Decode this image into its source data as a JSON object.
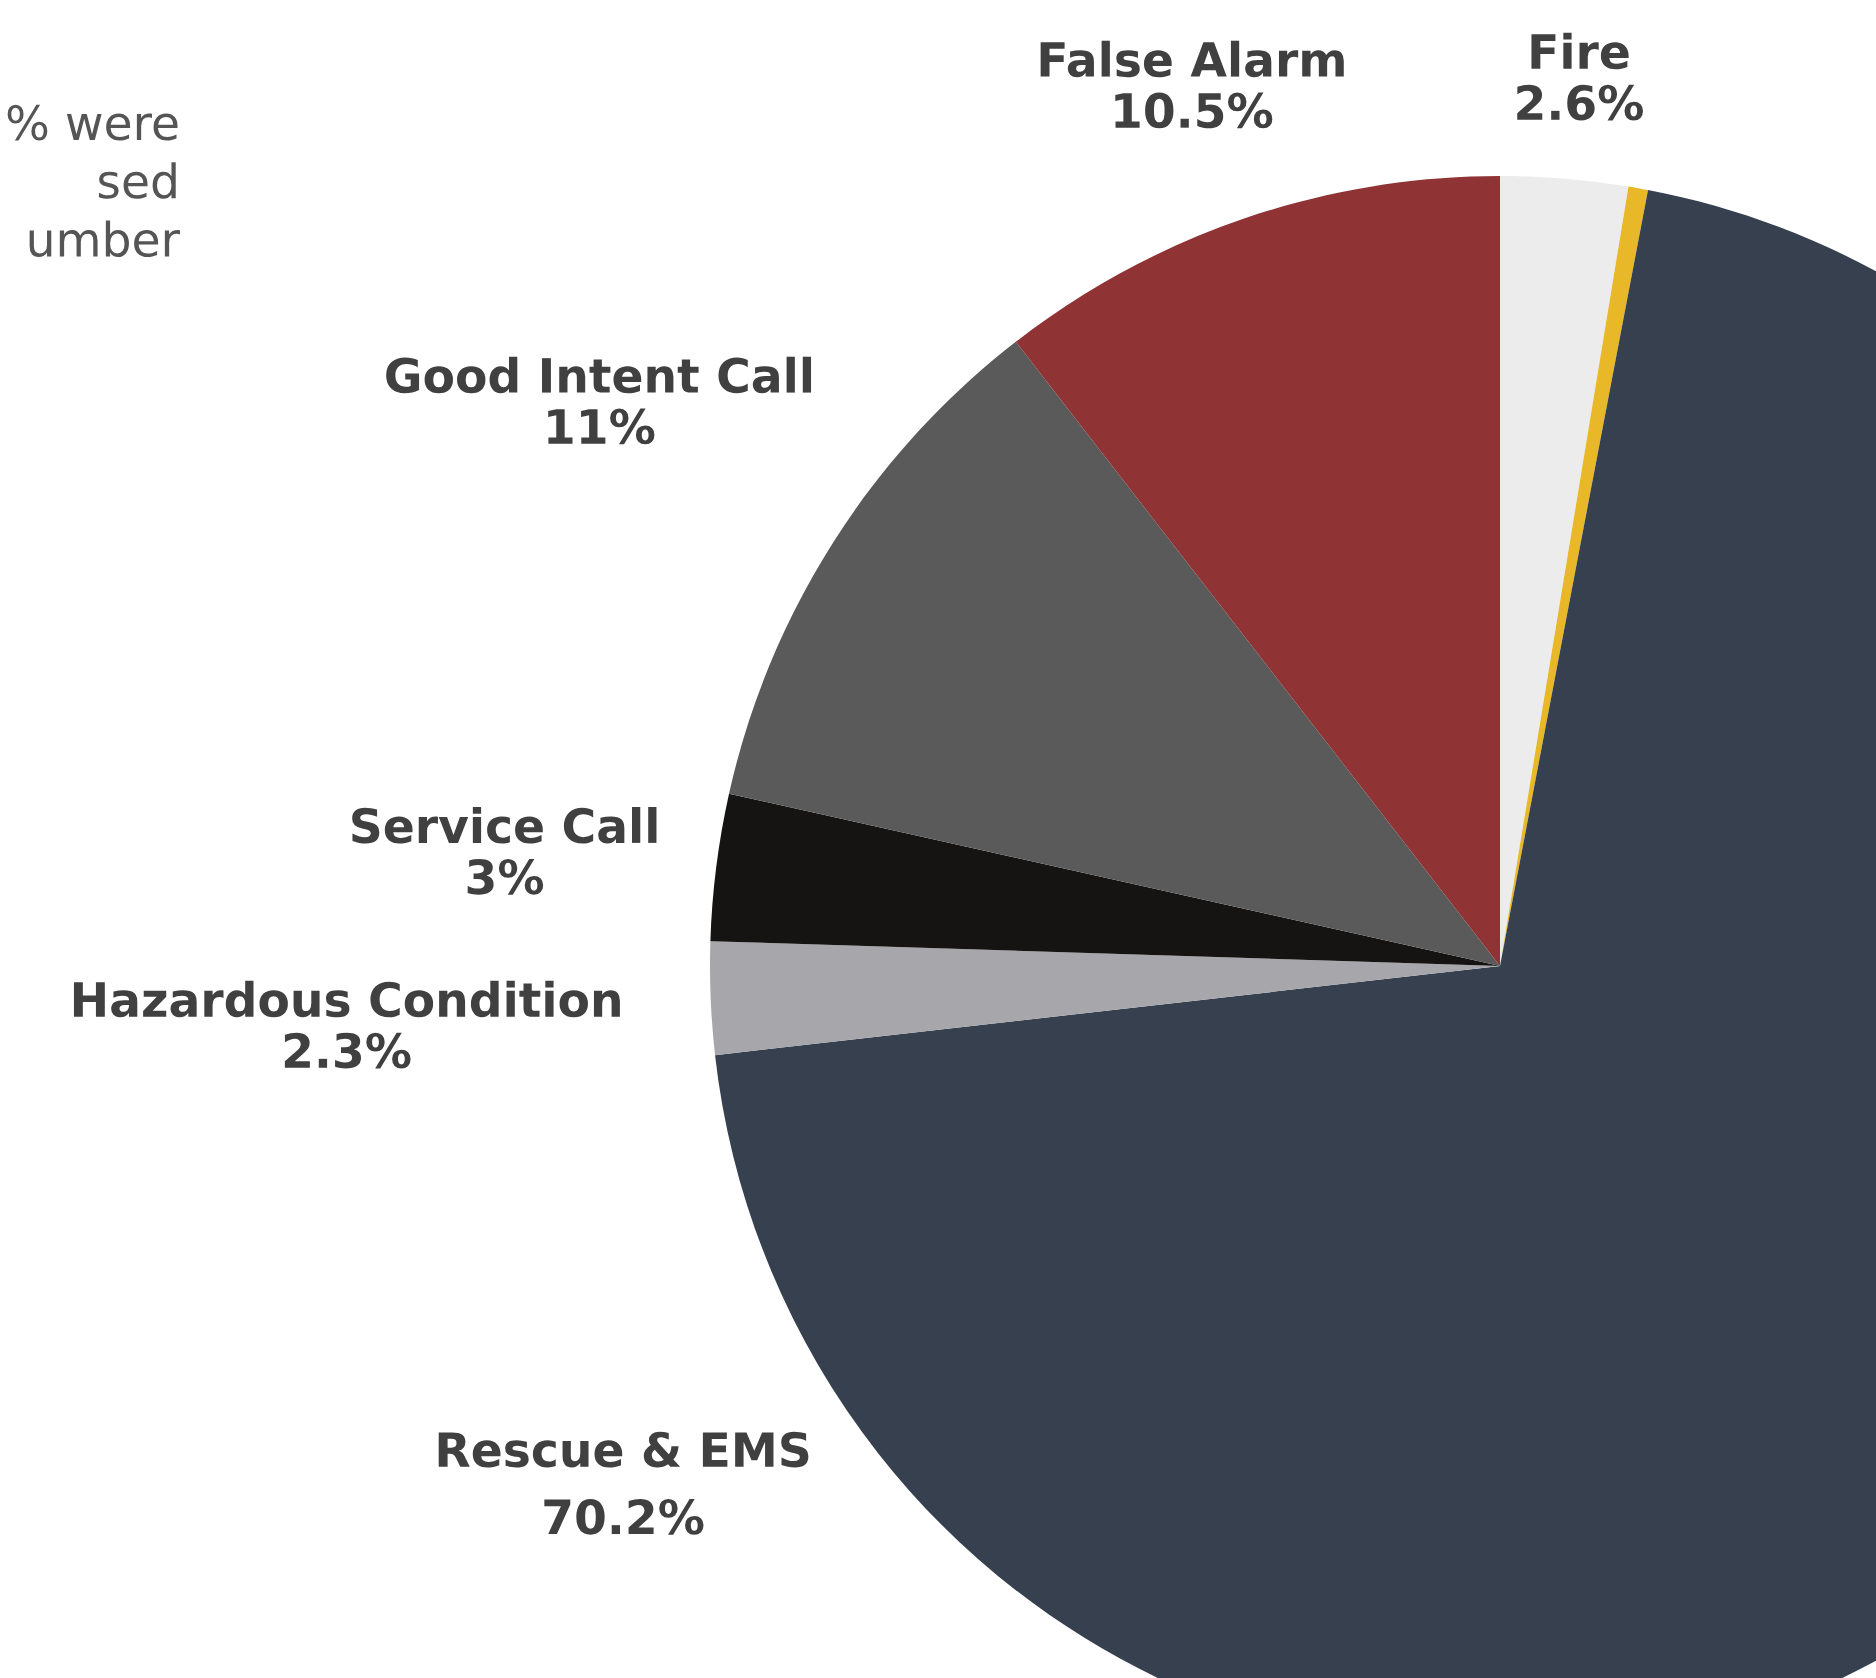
{
  "chart_data": {
    "type": "pie",
    "categories": [
      "Fire",
      null,
      "Rescue & EMS",
      "Hazardous Condition",
      "Service Call",
      "Good Intent Call",
      "False Alarm"
    ],
    "values": [
      2.6,
      0.4,
      70.2,
      2.3,
      3,
      11,
      10.5
    ],
    "value_labels": [
      "2.6%",
      null,
      "70.2%",
      "2.3%",
      "3%",
      "11%",
      "10.5%"
    ],
    "colors": [
      "#ececec",
      "#e8b828",
      "#36404f",
      "#a7a7ab",
      "#161412",
      "#5a5a5a",
      "#8f3334"
    ],
    "annotations": [
      "% were\nsed\number"
    ]
  }
}
